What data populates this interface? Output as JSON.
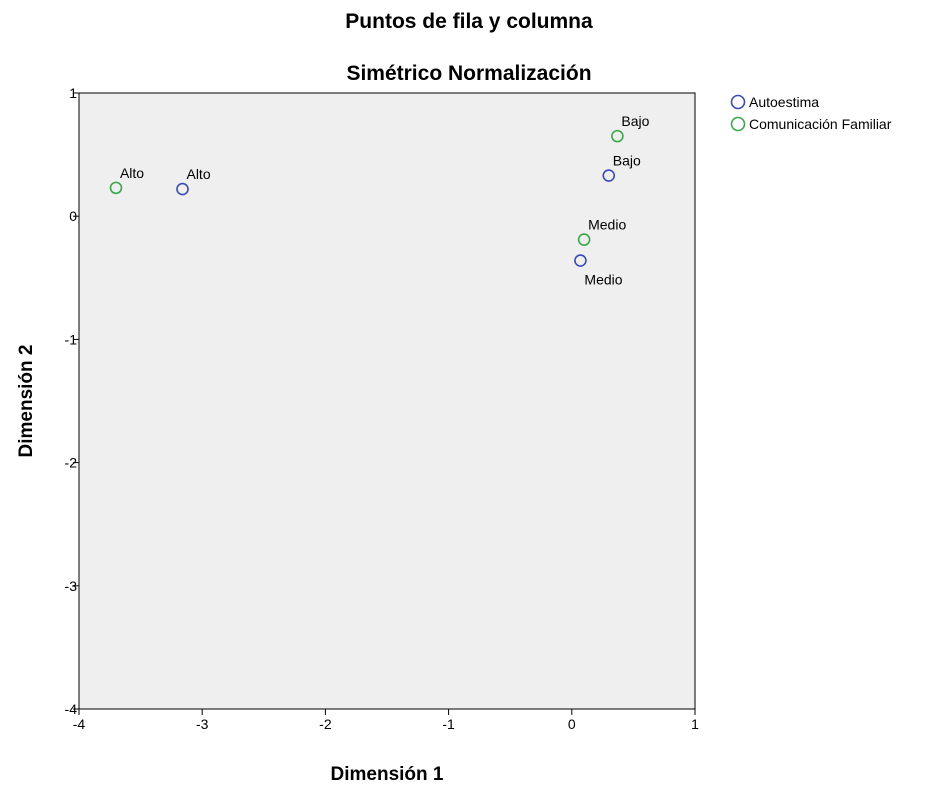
{
  "chart_data": {
    "type": "scatter",
    "title": "Puntos de fila y columna",
    "subtitle": "Simétrico Normalización",
    "xlabel": "Dimensión 1",
    "ylabel": "Dimensión 2",
    "xlim": [
      -4,
      1
    ],
    "ylim": [
      -4,
      1
    ],
    "xticks": [
      -4,
      -3,
      -2,
      -1,
      0,
      1
    ],
    "yticks": [
      1,
      0,
      -1,
      -2,
      -3,
      -4
    ],
    "grid": false,
    "legend_position": "top-right outside",
    "colors": {
      "plot_background": "#efefef"
    },
    "series": [
      {
        "name": "Autoestima",
        "color": "#3a4bb8",
        "points": [
          {
            "label": "Alto",
            "x": -3.16,
            "y": 0.22
          },
          {
            "label": "Bajo",
            "x": 0.3,
            "y": 0.33
          },
          {
            "label": "Medio",
            "x": 0.07,
            "y": -0.36
          }
        ]
      },
      {
        "name": "Comunicación Familiar",
        "color": "#3da64b",
        "points": [
          {
            "label": "Alto",
            "x": -3.7,
            "y": 0.23
          },
          {
            "label": "Bajo",
            "x": 0.37,
            "y": 0.65
          },
          {
            "label": "Medio",
            "x": 0.1,
            "y": -0.19
          }
        ]
      }
    ]
  }
}
